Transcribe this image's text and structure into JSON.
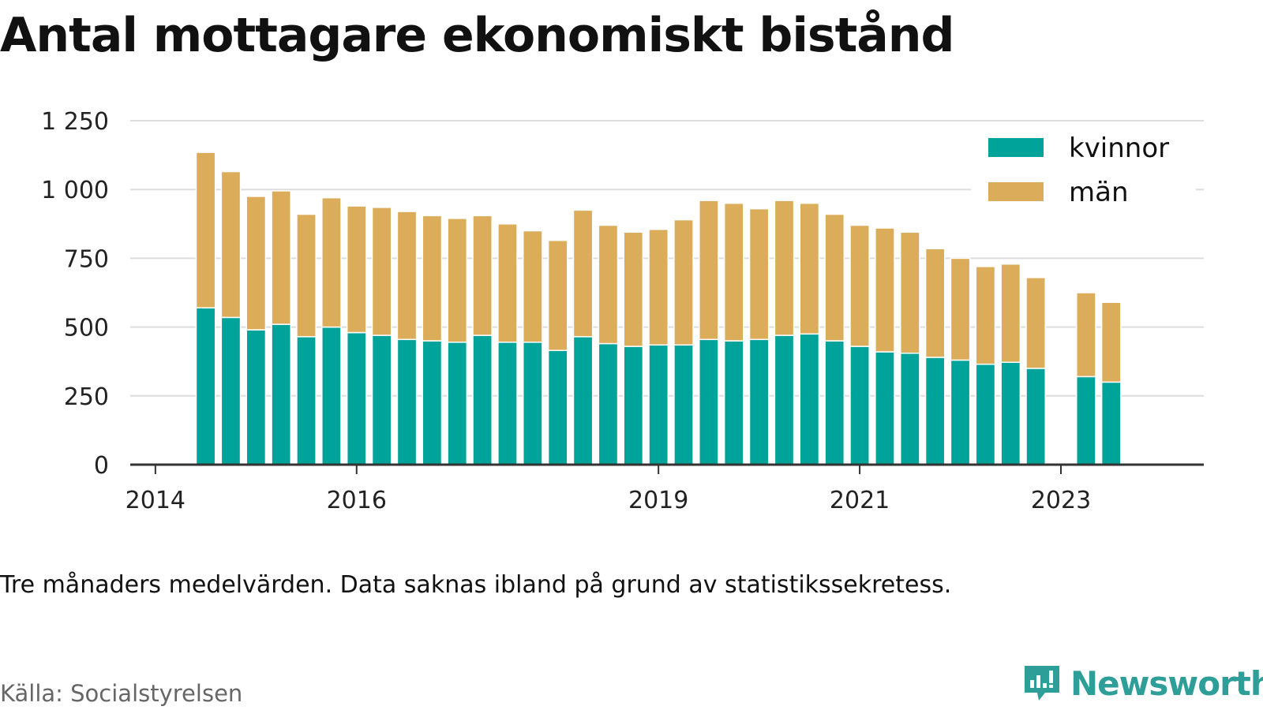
{
  "chart_data": {
    "type": "bar",
    "stacked": true,
    "title": "Antal mottagare ekonomiskt bistånd",
    "note": "Tre månaders medelvärden. Data saknas ibland på grund av statistikssekretess.",
    "source": "Källa: Socialstyrelsen",
    "ylim": [
      0,
      1250
    ],
    "y_ticks": [
      0,
      250,
      500,
      750,
      1000,
      1250
    ],
    "y_tick_labels": [
      "0",
      "250",
      "500",
      "750",
      "1 000",
      "1 250"
    ],
    "x_range": [
      2013.75,
      2024.42
    ],
    "x_ticks": [
      2014,
      2016,
      2019,
      2021,
      2023
    ],
    "x_tick_labels": [
      "2014",
      "2016",
      "2019",
      "2021",
      "2023"
    ],
    "grid": true,
    "legend_position": "top-right",
    "x": [
      2014.5,
      2014.75,
      2015.0,
      2015.25,
      2015.5,
      2015.75,
      2016.0,
      2016.25,
      2016.5,
      2016.75,
      2017.0,
      2017.25,
      2017.5,
      2017.75,
      2018.0,
      2018.25,
      2018.5,
      2018.75,
      2019.0,
      2019.25,
      2019.5,
      2019.75,
      2020.0,
      2020.25,
      2020.5,
      2020.75,
      2021.0,
      2021.25,
      2021.5,
      2021.75,
      2022.0,
      2022.25,
      2022.5,
      2022.75,
      2023.25,
      2023.5
    ],
    "series": [
      {
        "name": "kvinnor",
        "color": "#00a39a",
        "values": [
          570,
          535,
          490,
          510,
          465,
          500,
          480,
          470,
          455,
          450,
          445,
          470,
          445,
          445,
          415,
          465,
          440,
          430,
          435,
          435,
          455,
          450,
          455,
          470,
          475,
          450,
          430,
          410,
          405,
          390,
          380,
          365,
          372,
          350,
          320,
          300
        ]
      },
      {
        "name": "män",
        "color": "#dbad5b",
        "values": [
          565,
          530,
          485,
          485,
          445,
          470,
          460,
          465,
          465,
          455,
          450,
          435,
          430,
          405,
          400,
          460,
          430,
          415,
          420,
          455,
          505,
          500,
          475,
          490,
          475,
          460,
          440,
          450,
          440,
          395,
          370,
          355,
          357,
          330,
          305,
          290
        ]
      }
    ]
  },
  "brand": {
    "name": "Newsworthy",
    "icon": "newsworthy-chart-bubble-icon",
    "color": "#2e9e98"
  }
}
